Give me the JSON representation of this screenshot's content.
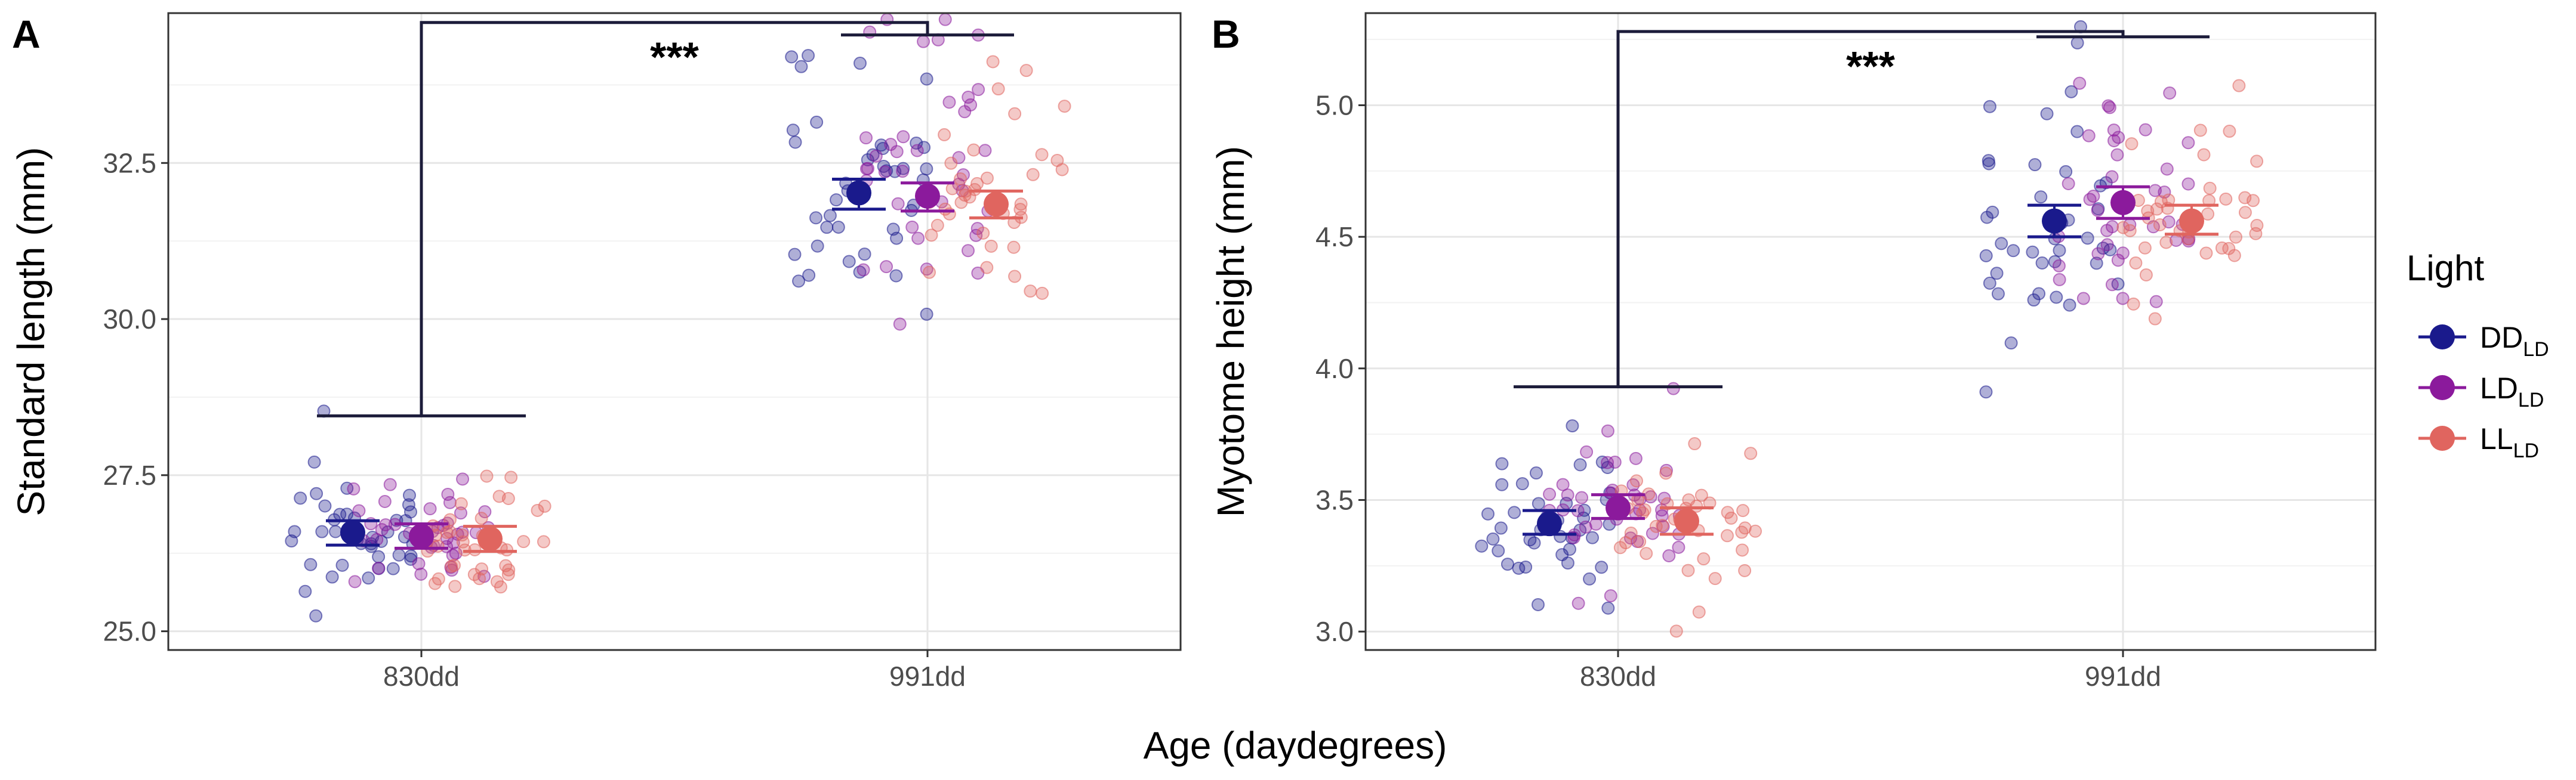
{
  "figure": {
    "xlabel": "Age (daydegrees)",
    "legend": {
      "title": "Light",
      "items": [
        {
          "base": "DD",
          "sub": "LD",
          "color": "#1a1a8c"
        },
        {
          "base": "LD",
          "sub": "LD",
          "color": "#8b1a9c"
        },
        {
          "base": "LL",
          "sub": "LD",
          "color": "#e0655f"
        }
      ]
    }
  },
  "chart_data": [
    {
      "panel": "A",
      "type": "scatter",
      "ylabel": "Standard length (mm)",
      "categories": [
        "830dd",
        "991dd"
      ],
      "ylim": [
        24.7,
        34.9
      ],
      "yticks": [
        25.0,
        27.5,
        30.0,
        32.5
      ],
      "ytick_labels": [
        "25.0",
        "27.5",
        "30.0",
        "32.5"
      ],
      "significance": {
        "label": "***",
        "groups": [
          "830dd",
          "991dd"
        ],
        "left_y": 28.45,
        "right_y": 34.55,
        "top_y": 34.75
      },
      "series": [
        {
          "name": "DD_LD",
          "means": [
            26.58,
            32.02
          ],
          "ci_low": [
            26.38,
            31.76
          ],
          "ci_high": [
            26.77,
            32.24
          ],
          "n": 40,
          "sd": [
            0.5,
            1.2
          ]
        },
        {
          "name": "LD_LD",
          "means": [
            26.52,
            31.97
          ],
          "ci_low": [
            26.33,
            31.73
          ],
          "ci_high": [
            26.72,
            32.18
          ],
          "n": 40,
          "sd": [
            0.5,
            1.4
          ]
        },
        {
          "name": "LL_LD",
          "means": [
            26.48,
            31.84
          ],
          "ci_low": [
            26.28,
            31.62
          ],
          "ci_high": [
            26.68,
            32.05
          ],
          "n": 40,
          "sd": [
            0.55,
            0.9
          ]
        }
      ]
    },
    {
      "panel": "B",
      "type": "scatter",
      "ylabel": "Myotome height (mm)",
      "categories": [
        "830dd",
        "991dd"
      ],
      "ylim": [
        2.93,
        5.35
      ],
      "yticks": [
        3.0,
        3.5,
        4.0,
        4.5,
        5.0
      ],
      "ytick_labels": [
        "3.0",
        "3.5",
        "4.0",
        "4.5",
        "5.0"
      ],
      "significance": {
        "label": "***",
        "groups": [
          "830dd",
          "991dd"
        ],
        "left_y": 3.93,
        "right_y": 5.26,
        "top_y": 5.28
      },
      "series": [
        {
          "name": "DD_LD",
          "means": [
            3.41,
            4.56
          ],
          "ci_low": [
            3.37,
            4.5
          ],
          "ci_high": [
            3.46,
            4.62
          ],
          "n": 40,
          "sd": [
            0.13,
            0.24
          ]
        },
        {
          "name": "LD_LD",
          "means": [
            3.47,
            4.63
          ],
          "ci_low": [
            3.43,
            4.57
          ],
          "ci_high": [
            3.52,
            4.69
          ],
          "n": 40,
          "sd": [
            0.16,
            0.22
          ]
        },
        {
          "name": "LL_LD",
          "means": [
            3.42,
            4.56
          ],
          "ci_low": [
            3.37,
            4.51
          ],
          "ci_high": [
            3.47,
            4.62
          ],
          "n": 40,
          "sd": [
            0.15,
            0.17
          ]
        }
      ]
    }
  ]
}
